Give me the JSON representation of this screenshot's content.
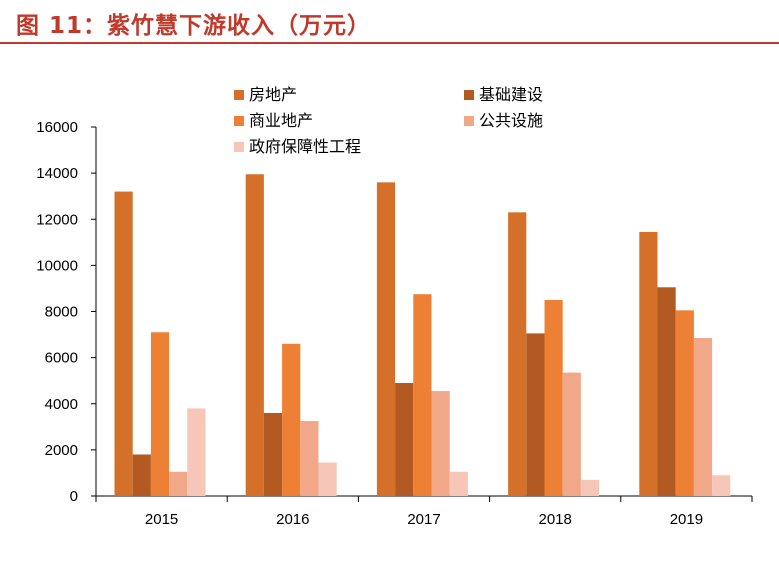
{
  "header": {
    "title": "图 11：紫竹慧下游收入（万元）"
  },
  "chart_data": {
    "type": "bar",
    "title": "",
    "xlabel": "",
    "ylabel": "",
    "ylim": [
      0,
      16000
    ],
    "yticks": [
      0,
      2000,
      4000,
      6000,
      8000,
      10000,
      12000,
      14000,
      16000
    ],
    "categories": [
      "2015",
      "2016",
      "2017",
      "2018",
      "2019"
    ],
    "grid": false,
    "legend_position": "top",
    "series": [
      {
        "name": "房地产",
        "color": "#d4702a",
        "values": [
          13200,
          13950,
          13600,
          12300,
          11450
        ]
      },
      {
        "name": "基础建设",
        "color": "#b35a22",
        "values": [
          1800,
          3600,
          4900,
          7050,
          9050
        ]
      },
      {
        "name": "商业地产",
        "color": "#ee8035",
        "values": [
          7100,
          6600,
          8750,
          8500,
          8050
        ]
      },
      {
        "name": "公共设施",
        "color": "#f0a889",
        "values": [
          1050,
          3250,
          4550,
          5350,
          6850
        ]
      },
      {
        "name": "政府保障性工程",
        "color": "#f6c6b8",
        "values": [
          3800,
          1450,
          1050,
          700,
          900
        ]
      }
    ]
  }
}
